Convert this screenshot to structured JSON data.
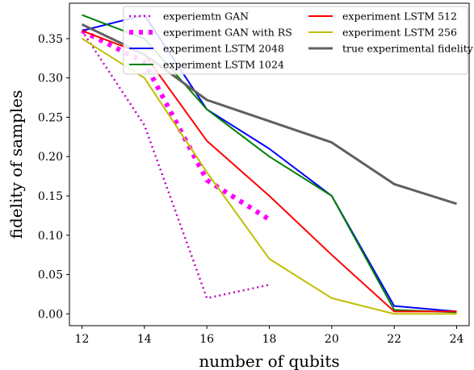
{
  "chart_data": {
    "type": "line",
    "xlabel": "number of qubits",
    "ylabel": "fidelity of samples",
    "xlim": [
      11.6,
      24.4
    ],
    "ylim": [
      -0.015,
      0.395
    ],
    "xticks": [
      12,
      14,
      16,
      18,
      20,
      22,
      24
    ],
    "yticks": [
      0.0,
      0.05,
      0.1,
      0.15,
      0.2,
      0.25,
      0.3,
      0.35
    ],
    "ytick_labels": [
      "0.00",
      "0.05",
      "0.10",
      "0.15",
      "0.20",
      "0.25",
      "0.30",
      "0.35"
    ],
    "grid": false,
    "legend_placement": "top-right",
    "series": [
      {
        "name": "experiemtn GAN",
        "color": "#bf00bf",
        "style": "dotted-thin",
        "x": [
          12,
          14,
          16,
          18
        ],
        "y": [
          0.36,
          0.24,
          0.02,
          0.037
        ]
      },
      {
        "name": "experiment GAN with RS",
        "color": "#ff00ff",
        "style": "dotted-thick",
        "x": [
          12,
          14,
          16,
          18
        ],
        "y": [
          0.36,
          0.32,
          0.17,
          0.12
        ]
      },
      {
        "name": "experiment LSTM 2048",
        "color": "#0000ff",
        "style": "solid",
        "x": [
          12,
          14,
          16,
          18,
          20,
          22,
          24
        ],
        "y": [
          0.36,
          0.38,
          0.26,
          0.21,
          0.15,
          0.01,
          0.003
        ]
      },
      {
        "name": "experiment LSTM 1024",
        "color": "#008000",
        "style": "solid",
        "x": [
          12,
          14,
          16,
          18,
          20,
          22,
          24
        ],
        "y": [
          0.38,
          0.35,
          0.26,
          0.2,
          0.15,
          0.005,
          0.002
        ]
      },
      {
        "name": "experiment LSTM 512",
        "color": "#ff0000",
        "style": "solid",
        "x": [
          12,
          14,
          16,
          18,
          20,
          22,
          24
        ],
        "y": [
          0.36,
          0.33,
          0.22,
          0.15,
          0.075,
          0.003,
          0.003
        ]
      },
      {
        "name": "experiment LSTM 256",
        "color": "#bfbf00",
        "style": "solid",
        "x": [
          12,
          14,
          16,
          18,
          20,
          22,
          24
        ],
        "y": [
          0.35,
          0.3,
          0.18,
          0.07,
          0.02,
          0.0,
          0.0
        ]
      },
      {
        "name": "true experimental fidelity",
        "color": "#606060",
        "style": "solid-thick",
        "x": [
          12,
          14,
          16,
          18,
          20,
          22,
          24
        ],
        "y": [
          0.368,
          0.33,
          0.272,
          0.245,
          0.218,
          0.165,
          0.14
        ]
      }
    ]
  }
}
